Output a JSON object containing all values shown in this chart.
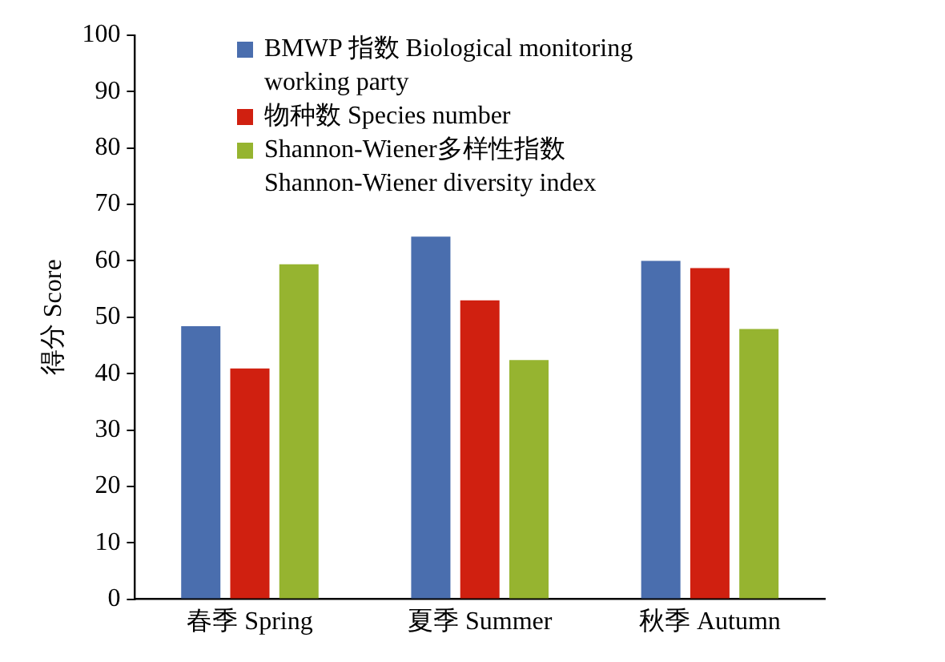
{
  "chart_data": {
    "type": "bar",
    "ylabel": "得分 Score",
    "categories": [
      "春季 Spring",
      "夏季 Summer",
      "秋季 Autumn"
    ],
    "series": [
      {
        "name": "BMWP 指数 Biological monitoring working party",
        "color": "#4a6eae",
        "values": [
          48.4,
          64.3,
          60.0
        ]
      },
      {
        "name": "物种数 Species number",
        "color": "#d02010",
        "values": [
          40.9,
          53.0,
          58.7
        ]
      },
      {
        "name": "Shannon-Wiener多样性指数 Shannon-Wiener diversity index",
        "color": "#96b430",
        "values": [
          59.4,
          42.4,
          47.9
        ]
      }
    ],
    "ylim": [
      0,
      100
    ],
    "yticks": [
      0,
      10,
      20,
      30,
      40,
      50,
      60,
      70,
      80,
      90,
      100
    ],
    "grid": false,
    "legend": "top left"
  }
}
